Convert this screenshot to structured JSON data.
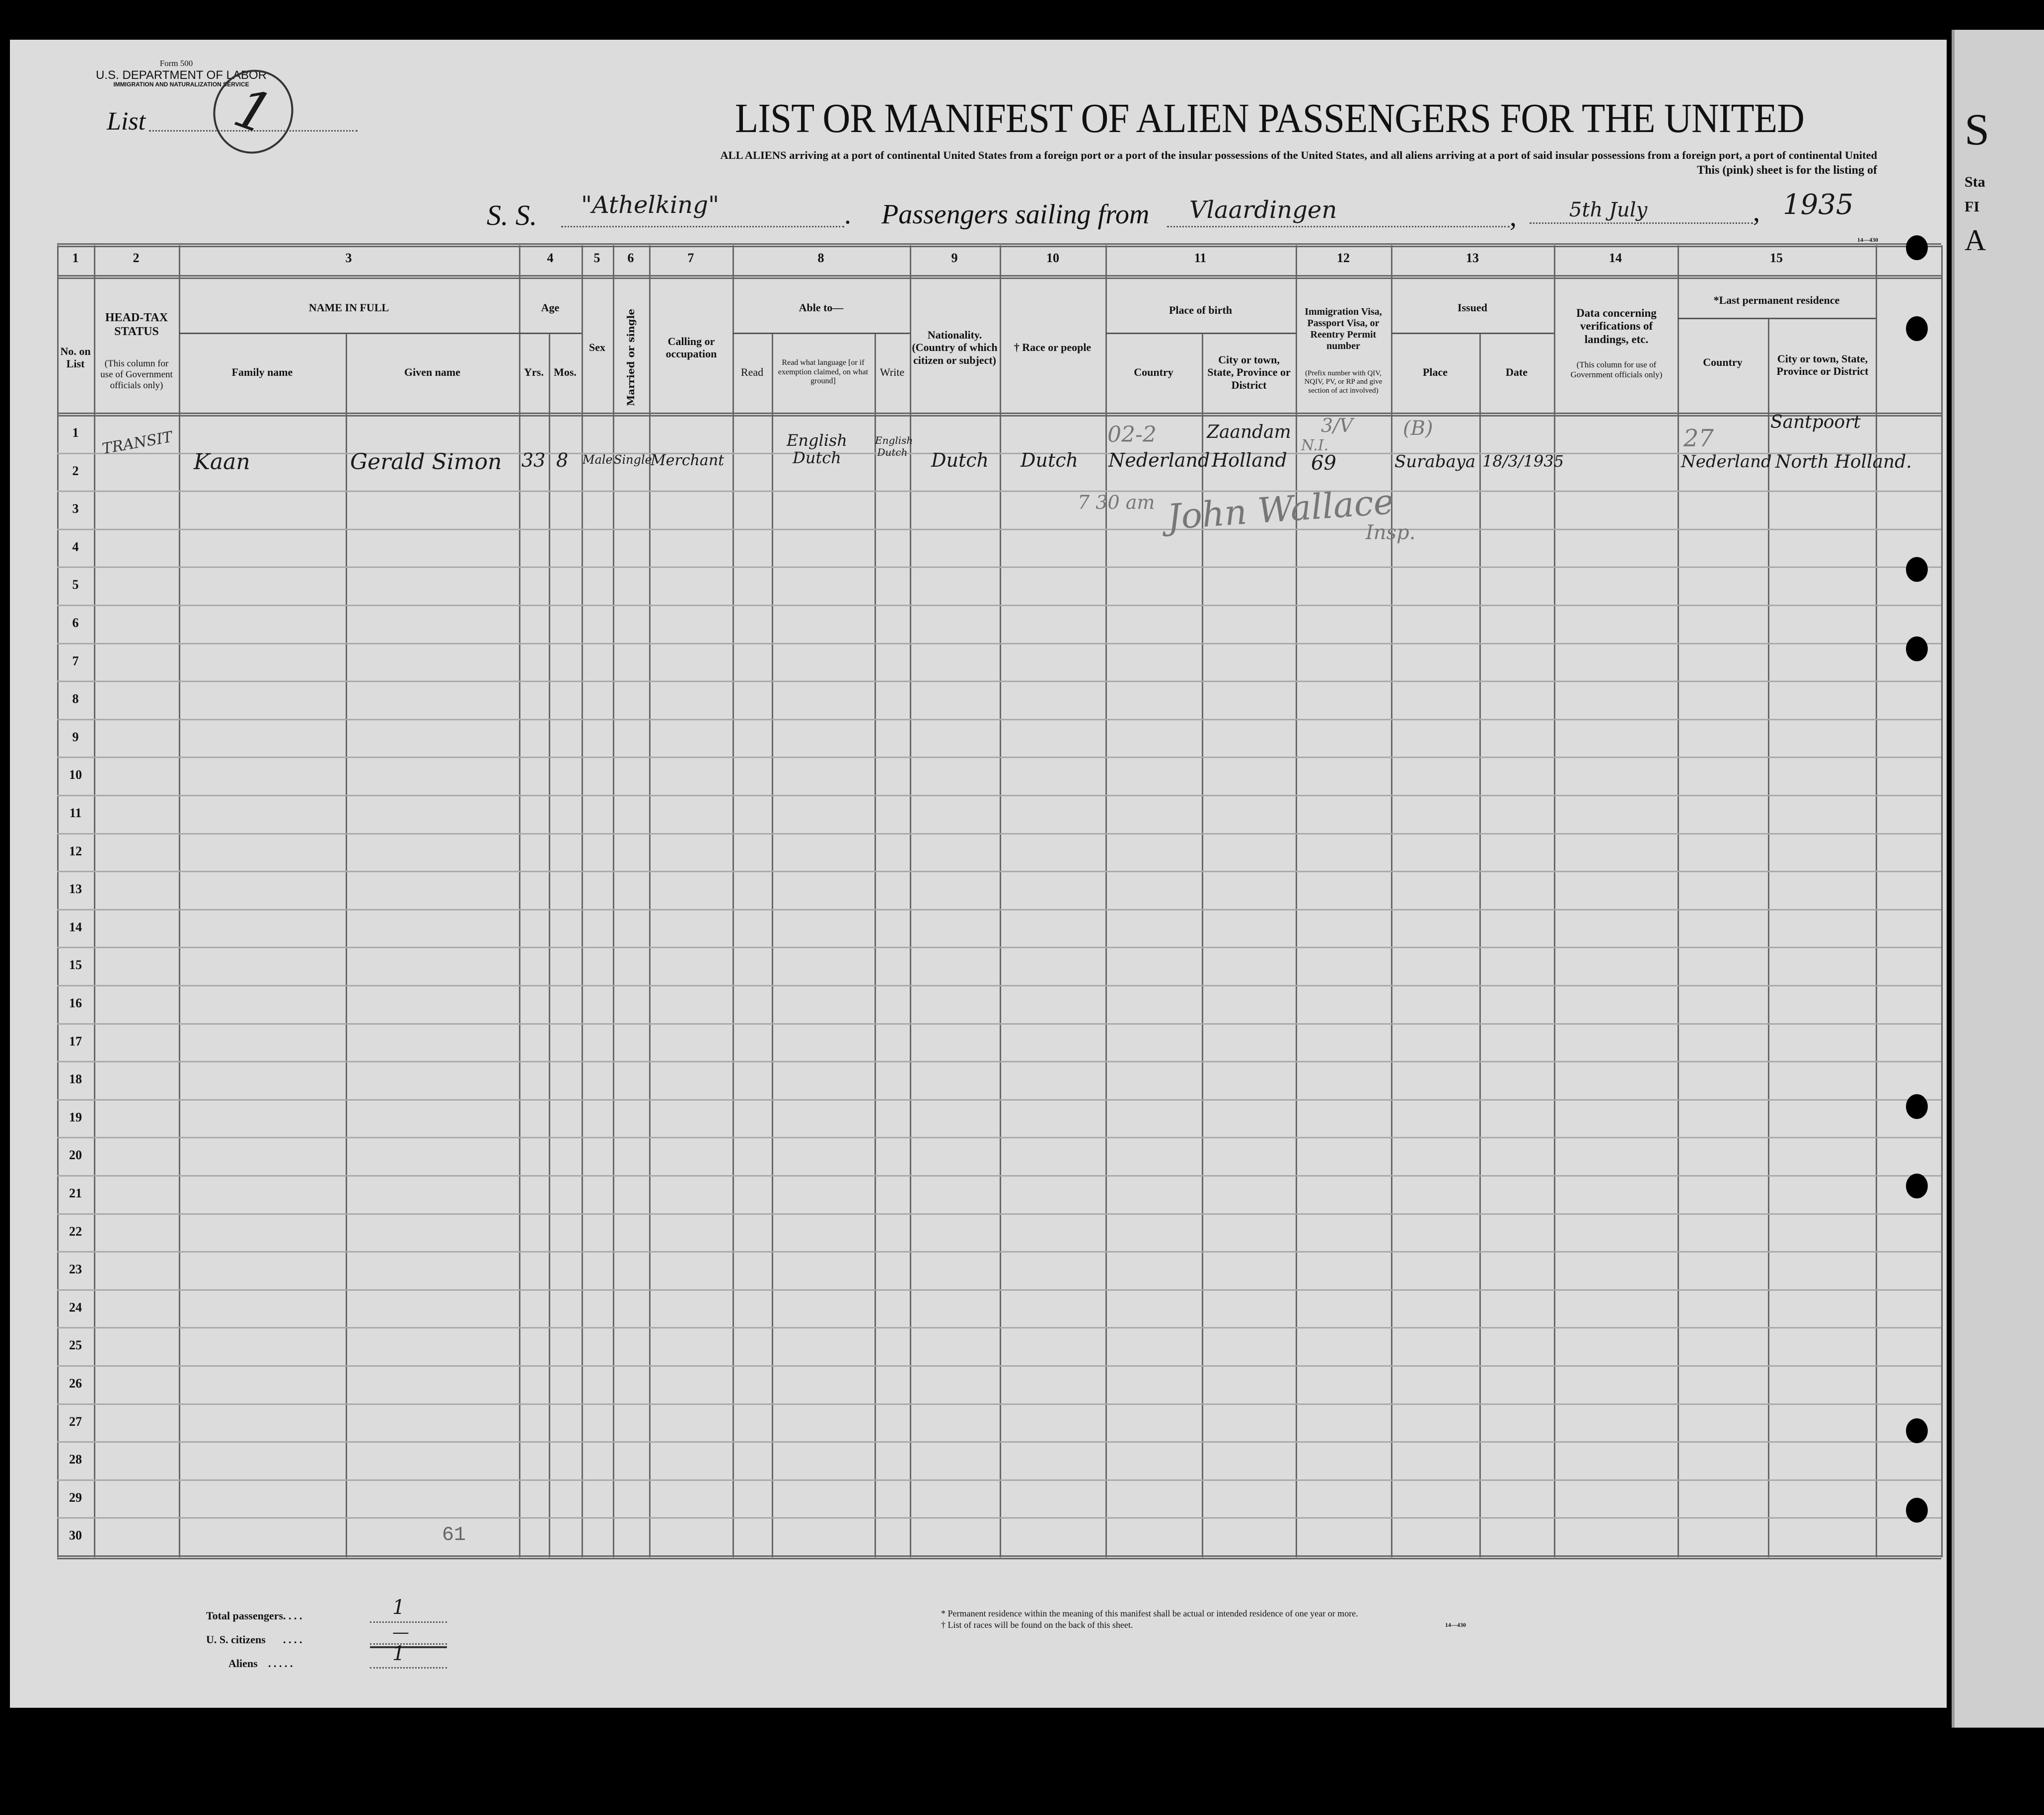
{
  "form": {
    "number": "Form 500",
    "department": "U.S. DEPARTMENT OF LABOR",
    "service": "IMMIGRATION AND NATURALIZATION SERVICE",
    "list_label": "List",
    "list_number": "1"
  },
  "title": "LIST OR MANIFEST OF ALIEN PASSENGERS FOR THE UNITED",
  "subtitle_line1": "ALL ALIENS arriving at a port of continental United States from a foreign port or a port of the insular possessions of the United States, and all aliens arriving at a port of said insular possessions from a foreign port, a port of continental United",
  "subtitle_line2": "This (pink) sheet is for the listing of",
  "voyage": {
    "ss_label": "S. S.",
    "ship": "\"Athelking\"",
    "sailing_label": "Passengers sailing from",
    "port": "Vlaardingen",
    "date": "5th July",
    "year": "1935"
  },
  "form_code": "14—430",
  "right_sheet_fragments": [
    "S",
    "Sta",
    "FI",
    "A"
  ],
  "columns": {
    "numbers": [
      "1",
      "2",
      "3",
      "4",
      "5",
      "6",
      "7",
      "8",
      "9",
      "10",
      "11",
      "12",
      "13",
      "14",
      "15"
    ],
    "no_on_list": "No. on List",
    "head_tax": "HEAD-TAX STATUS",
    "head_tax_note": "(This column for use of Government officials only)",
    "name_in_full": "NAME IN FULL",
    "family_name": "Family name",
    "given_name": "Given name",
    "age": "Age",
    "yrs": "Yrs.",
    "mos": "Mos.",
    "sex": "Sex",
    "married": "Married or single",
    "calling": "Calling or occupation",
    "able_to": "Able to—",
    "read": "Read",
    "read_what": "Read what language [or if exemption claimed, on what ground]",
    "write": "Write",
    "nationality": "Nationality. (Country of which citizen or subject)",
    "race": "† Race or people",
    "place_of_birth": "Place of birth",
    "country": "Country",
    "city": "City or town, State, Province or District",
    "visa": "Immigration Visa, Passport Visa, or Reentry Permit number",
    "visa_note": "(Prefix number with QIV, NQIV, PV, or RP and give section of act involved)",
    "issued": "Issued",
    "place": "Place",
    "date": "Date",
    "data_verif": "Data concerning verifications of landings, etc.",
    "data_verif_note": "(This column for use of Government officials only)",
    "last_residence": "*Last permanent residence",
    "res_country": "Country",
    "res_city": "City or town, State, Province or District"
  },
  "row_numbers": [
    "1",
    "2",
    "3",
    "4",
    "5",
    "6",
    "7",
    "8",
    "9",
    "10",
    "11",
    "12",
    "13",
    "14",
    "15",
    "16",
    "17",
    "18",
    "19",
    "20",
    "21",
    "22",
    "23",
    "24",
    "25",
    "26",
    "27",
    "28",
    "29",
    "30"
  ],
  "entry": {
    "head_tax": "TRANSIT",
    "family_name": "Kaan",
    "given_name": "Gerald Simon",
    "yrs": "33",
    "mos": "8",
    "sex": "Male",
    "married": "Single",
    "calling": "Merchant",
    "read_what": "English Dutch",
    "write": "English Dutch",
    "nationality": "Dutch",
    "race": "Dutch",
    "birth_code": "02-2",
    "birth_country": "Nederland",
    "birth_city": "Zaandam",
    "birth_province": "Holland",
    "visa_code": "3/V",
    "visa_prefix": "N.I.",
    "visa_number": "69",
    "issued_mark": "(B)",
    "issued_place": "Surabaya",
    "issued_date": "18/3/1935",
    "res_code": "27",
    "res_country": "Nederland",
    "res_city": "Santpoort",
    "res_province": "North Holland."
  },
  "annotations": {
    "time": "7 30 am",
    "signature": "John Wallace",
    "title": "Insp.",
    "page_mark": "61"
  },
  "totals": {
    "total_label": "Total passengers",
    "total_value": "1",
    "us_label": "U. S. citizens",
    "us_value": "—",
    "aliens_label": "Aliens",
    "aliens_value": "1"
  },
  "footnotes": [
    "* Permanent residence within the meaning of this manifest shall be actual or intended residence of one year or more.",
    "† List of races will be found on the back of this sheet."
  ]
}
